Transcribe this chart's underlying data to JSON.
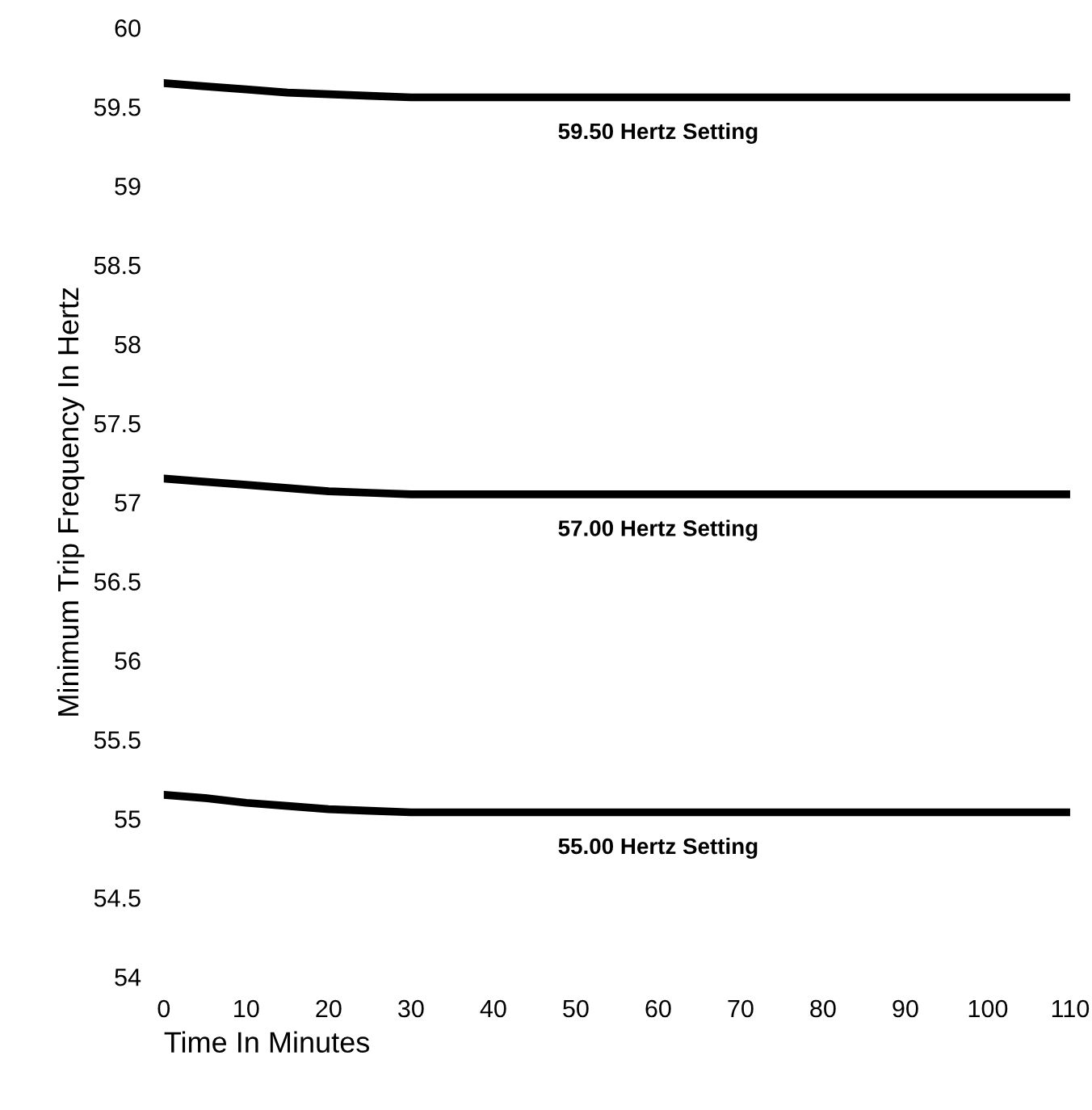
{
  "chart_data": {
    "type": "line",
    "xlabel": "Time In Minutes",
    "ylabel": "Minimum Trip Frequency In Hertz",
    "series": [
      {
        "name": "59.50 Hertz Setting",
        "color": "#000000",
        "x": [
          0,
          5,
          10,
          15,
          20,
          25,
          30,
          40,
          60,
          80,
          110
        ],
        "values": [
          59.65,
          59.63,
          59.61,
          59.59,
          59.58,
          59.57,
          59.56,
          59.56,
          59.56,
          59.56,
          59.56
        ]
      },
      {
        "name": "57.00 Hertz Setting",
        "color": "#000000",
        "x": [
          0,
          5,
          10,
          15,
          20,
          25,
          30,
          40,
          60,
          80,
          110
        ],
        "values": [
          57.15,
          57.13,
          57.11,
          57.09,
          57.07,
          57.06,
          57.05,
          57.05,
          57.05,
          57.05,
          57.05
        ]
      },
      {
        "name": "55.00 Hertz Setting",
        "color": "#000000",
        "x": [
          0,
          5,
          10,
          15,
          20,
          25,
          30,
          40,
          60,
          80,
          110
        ],
        "values": [
          55.15,
          55.13,
          55.1,
          55.08,
          55.06,
          55.05,
          55.04,
          55.04,
          55.04,
          55.04,
          55.04
        ]
      }
    ],
    "xlim": [
      0,
      110
    ],
    "ylim": [
      54,
      60
    ],
    "xticks": [
      0,
      10,
      20,
      30,
      40,
      50,
      60,
      70,
      80,
      90,
      100,
      110
    ],
    "yticks": [
      54,
      54.5,
      55,
      55.5,
      56,
      56.5,
      57,
      57.5,
      58,
      58.5,
      59,
      59.5,
      60
    ],
    "grid": false,
    "legend": false,
    "marker": "none",
    "line_style": "solid"
  }
}
